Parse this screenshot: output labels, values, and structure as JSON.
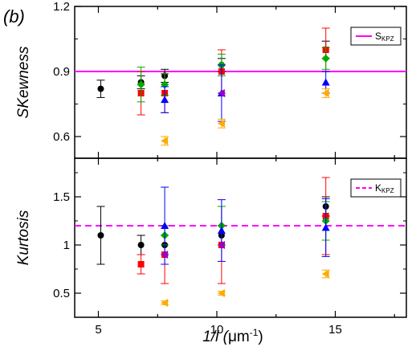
{
  "chart_data": [
    {
      "type": "scatter",
      "panel_tag": "(b)",
      "ylabel": "SKewness",
      "xlim": [
        4,
        18
      ],
      "ylim": [
        0.5,
        1.2
      ],
      "yticks": [
        0.6,
        0.9,
        1.2
      ],
      "xticks": [
        5,
        10,
        15
      ],
      "show_xtick_labels": false,
      "reference": {
        "value": 0.9,
        "label": "S",
        "label_sub": "KPZ",
        "color": "#ff00ff",
        "style": "solid"
      },
      "legend_position": "top-right",
      "series": [
        {
          "color": "#000000",
          "marker": "circle",
          "points": [
            {
              "x": 5.1,
              "y": 0.82,
              "err": 0.04
            },
            {
              "x": 6.8,
              "y": 0.85,
              "err": 0.03
            },
            {
              "x": 7.8,
              "y": 0.88,
              "err": 0.03
            },
            {
              "x": 10.2,
              "y": 0.93,
              "err": 0.03
            },
            {
              "x": 14.6,
              "y": 1.0,
              "err": 0.04
            }
          ]
        },
        {
          "color": "#ff0000",
          "marker": "square",
          "points": [
            {
              "x": 6.8,
              "y": 0.8,
              "err": 0.1
            },
            {
              "x": 7.8,
              "y": 0.8,
              "err": 0.09
            },
            {
              "x": 10.2,
              "y": 0.9,
              "err": 0.1
            },
            {
              "x": 14.6,
              "y": 1.0,
              "err": 0.1
            }
          ]
        },
        {
          "color": "#00aa00",
          "marker": "diamond",
          "points": [
            {
              "x": 6.8,
              "y": 0.84,
              "err": 0.08
            },
            {
              "x": 7.8,
              "y": 0.84,
              "err": 0.05
            },
            {
              "x": 10.2,
              "y": 0.93,
              "err": 0.05
            },
            {
              "x": 14.6,
              "y": 0.96,
              "err": 0.05
            }
          ]
        },
        {
          "color": "#0000ff",
          "marker": "triangle-up",
          "points": [
            {
              "x": 7.8,
              "y": 0.77,
              "err": 0.06
            },
            {
              "x": 10.2,
              "y": 0.8,
              "err": 0.13
            },
            {
              "x": 14.6,
              "y": 0.85,
              "err": 0.05
            }
          ]
        },
        {
          "color": "#9900cc",
          "marker": "triangle-left",
          "points": [
            {
              "x": 10.2,
              "y": 0.8,
              "err": 0.0
            }
          ]
        },
        {
          "color": "#ffaa00",
          "marker": "triangle-left",
          "points": [
            {
              "x": 7.8,
              "y": 0.58,
              "err": 0.02
            },
            {
              "x": 10.2,
              "y": 0.66,
              "err": 0.02
            },
            {
              "x": 14.6,
              "y": 0.8,
              "err": 0.02
            }
          ]
        }
      ]
    },
    {
      "type": "scatter",
      "xlabel_html_main": "1/l (",
      "xlabel_unit": "μm",
      "xlabel_exp": "-1",
      "xlabel_close": ")",
      "ylabel": "Kurtosis",
      "xlim": [
        4,
        18
      ],
      "ylim": [
        0.25,
        1.9
      ],
      "yticks": [
        0.5,
        1,
        1.5
      ],
      "ytick_labels": [
        "0.5",
        "1",
        "1.5"
      ],
      "xticks": [
        5,
        10,
        15
      ],
      "xtick_labels": [
        "5",
        "10",
        "15"
      ],
      "reference": {
        "value": 1.2,
        "label": "K",
        "label_sub": "KPZ",
        "color": "#ff00ff",
        "style": "dashed"
      },
      "legend_position": "top-right",
      "series": [
        {
          "color": "#000000",
          "marker": "circle",
          "points": [
            {
              "x": 5.1,
              "y": 1.1,
              "err": 0.3
            },
            {
              "x": 6.8,
              "y": 1.0,
              "err": 0.1
            },
            {
              "x": 7.8,
              "y": 1.0,
              "err": 0.1
            },
            {
              "x": 10.2,
              "y": 1.1,
              "err": 0.1
            },
            {
              "x": 14.6,
              "y": 1.4,
              "err": 0.1
            }
          ]
        },
        {
          "color": "#ff0000",
          "marker": "square",
          "points": [
            {
              "x": 6.8,
              "y": 0.8,
              "err": 0.1
            },
            {
              "x": 7.8,
              "y": 0.9,
              "err": 0.3
            },
            {
              "x": 10.2,
              "y": 1.0,
              "err": 0.4
            },
            {
              "x": 14.6,
              "y": 1.3,
              "err": 0.4
            }
          ]
        },
        {
          "color": "#00aa00",
          "marker": "diamond",
          "points": [
            {
              "x": 7.8,
              "y": 1.1,
              "err": 0.1
            },
            {
              "x": 10.2,
              "y": 1.2,
              "err": 0.2
            },
            {
              "x": 14.6,
              "y": 1.25,
              "err": 0.2
            }
          ]
        },
        {
          "color": "#0000ff",
          "marker": "triangle-up",
          "points": [
            {
              "x": 7.8,
              "y": 1.2,
              "err": 0.4
            },
            {
              "x": 10.2,
              "y": 1.15,
              "err": 0.32
            },
            {
              "x": 14.6,
              "y": 1.18,
              "err": 0.3
            }
          ]
        },
        {
          "color": "#9900cc",
          "marker": "triangle-left",
          "points": [
            {
              "x": 7.8,
              "y": 0.9,
              "err": 0.0
            },
            {
              "x": 10.2,
              "y": 1.0,
              "err": 0.0
            }
          ]
        },
        {
          "color": "#ffaa00",
          "marker": "triangle-left",
          "points": [
            {
              "x": 7.8,
              "y": 0.4,
              "err": 0.02
            },
            {
              "x": 10.2,
              "y": 0.5,
              "err": 0.02
            },
            {
              "x": 14.6,
              "y": 0.7,
              "err": 0.04
            }
          ]
        }
      ]
    }
  ]
}
